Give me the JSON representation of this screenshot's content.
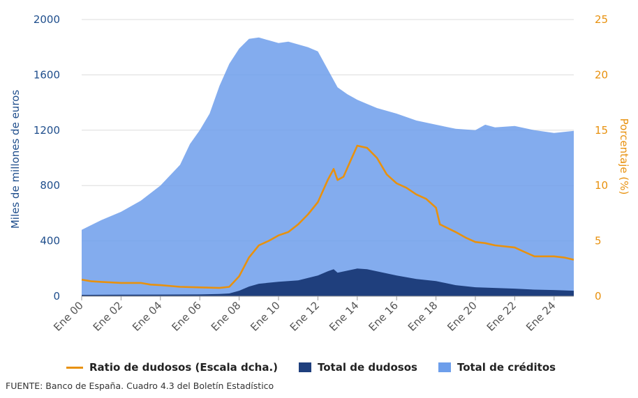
{
  "chart_data": {
    "type": "area",
    "x_start_year": 2000,
    "x_end_year": 2025,
    "xlabel": "",
    "ylabel_left": "Miles de millones de euros",
    "ylabel_right": "Porcentaje (%)",
    "ylim_left": [
      0,
      2000
    ],
    "ylim_right": [
      0,
      25
    ],
    "yticks_left": [
      "0",
      "400",
      "800",
      "1200",
      "1600",
      "2000"
    ],
    "yticks_right": [
      "0",
      "5",
      "10",
      "15",
      "20",
      "25"
    ],
    "xticks": [
      "Ene 00",
      "Ene 02",
      "Ene 04",
      "Ene 06",
      "Ene 08",
      "Ene 10",
      "Ene 12",
      "Ene 14",
      "Ene 16",
      "Ene 18",
      "Ene 20",
      "Ene 22",
      "Ene 24"
    ],
    "grid": true,
    "legend_position": "bottom",
    "series": [
      {
        "name": "Total de créditos",
        "axis": "left",
        "kind": "area",
        "color": "#6d9eeb",
        "points": [
          [
            2000.0,
            480
          ],
          [
            2001.0,
            550
          ],
          [
            2002.0,
            610
          ],
          [
            2003.0,
            690
          ],
          [
            2004.0,
            800
          ],
          [
            2005.0,
            950
          ],
          [
            2005.5,
            1100
          ],
          [
            2006.0,
            1200
          ],
          [
            2006.5,
            1320
          ],
          [
            2007.0,
            1520
          ],
          [
            2007.5,
            1680
          ],
          [
            2008.0,
            1790
          ],
          [
            2008.5,
            1860
          ],
          [
            2009.0,
            1870
          ],
          [
            2009.5,
            1850
          ],
          [
            2010.0,
            1830
          ],
          [
            2010.5,
            1840
          ],
          [
            2011.0,
            1820
          ],
          [
            2011.5,
            1800
          ],
          [
            2012.0,
            1770
          ],
          [
            2012.5,
            1640
          ],
          [
            2013.0,
            1510
          ],
          [
            2013.5,
            1460
          ],
          [
            2014.0,
            1420
          ],
          [
            2014.5,
            1390
          ],
          [
            2015.0,
            1360
          ],
          [
            2016.0,
            1320
          ],
          [
            2017.0,
            1270
          ],
          [
            2018.0,
            1240
          ],
          [
            2019.0,
            1210
          ],
          [
            2020.0,
            1200
          ],
          [
            2020.5,
            1240
          ],
          [
            2021.0,
            1220
          ],
          [
            2022.0,
            1230
          ],
          [
            2023.0,
            1200
          ],
          [
            2024.0,
            1180
          ],
          [
            2025.0,
            1195
          ]
        ]
      },
      {
        "name": "Total de dudosos",
        "axis": "left",
        "kind": "area",
        "color": "#1f3f7d",
        "points": [
          [
            2000.0,
            10
          ],
          [
            2002.0,
            11
          ],
          [
            2004.0,
            12
          ],
          [
            2006.0,
            13
          ],
          [
            2007.0,
            16
          ],
          [
            2007.5,
            20
          ],
          [
            2008.0,
            40
          ],
          [
            2008.5,
            70
          ],
          [
            2009.0,
            90
          ],
          [
            2010.0,
            105
          ],
          [
            2011.0,
            115
          ],
          [
            2012.0,
            150
          ],
          [
            2012.5,
            180
          ],
          [
            2012.8,
            195
          ],
          [
            2013.0,
            170
          ],
          [
            2013.5,
            185
          ],
          [
            2014.0,
            200
          ],
          [
            2014.5,
            195
          ],
          [
            2015.0,
            180
          ],
          [
            2016.0,
            150
          ],
          [
            2017.0,
            125
          ],
          [
            2018.0,
            110
          ],
          [
            2019.0,
            80
          ],
          [
            2020.0,
            65
          ],
          [
            2021.0,
            60
          ],
          [
            2022.0,
            55
          ],
          [
            2023.0,
            48
          ],
          [
            2024.0,
            45
          ],
          [
            2025.0,
            40
          ]
        ]
      },
      {
        "name": "Ratio de dudosos (Escala dcha.)",
        "axis": "right",
        "kind": "line",
        "color": "#e8910e",
        "points": [
          [
            2000.0,
            1.5
          ],
          [
            2000.5,
            1.35
          ],
          [
            2001.0,
            1.3
          ],
          [
            2002.0,
            1.2
          ],
          [
            2003.0,
            1.2
          ],
          [
            2003.5,
            1.05
          ],
          [
            2004.0,
            1.0
          ],
          [
            2005.0,
            0.85
          ],
          [
            2006.0,
            0.8
          ],
          [
            2007.0,
            0.75
          ],
          [
            2007.5,
            0.85
          ],
          [
            2008.0,
            1.8
          ],
          [
            2008.5,
            3.5
          ],
          [
            2009.0,
            4.6
          ],
          [
            2009.5,
            5.0
          ],
          [
            2010.0,
            5.5
          ],
          [
            2010.5,
            5.8
          ],
          [
            2011.0,
            6.5
          ],
          [
            2011.5,
            7.4
          ],
          [
            2012.0,
            8.5
          ],
          [
            2012.5,
            10.5
          ],
          [
            2012.8,
            11.5
          ],
          [
            2013.0,
            10.5
          ],
          [
            2013.3,
            10.8
          ],
          [
            2013.6,
            12.0
          ],
          [
            2014.0,
            13.6
          ],
          [
            2014.5,
            13.4
          ],
          [
            2015.0,
            12.5
          ],
          [
            2015.5,
            11.0
          ],
          [
            2016.0,
            10.2
          ],
          [
            2016.5,
            9.8
          ],
          [
            2017.0,
            9.2
          ],
          [
            2017.5,
            8.8
          ],
          [
            2018.0,
            8.0
          ],
          [
            2018.2,
            6.5
          ],
          [
            2019.0,
            5.8
          ],
          [
            2019.5,
            5.3
          ],
          [
            2020.0,
            4.9
          ],
          [
            2020.5,
            4.8
          ],
          [
            2021.0,
            4.6
          ],
          [
            2022.0,
            4.4
          ],
          [
            2022.5,
            4.0
          ],
          [
            2023.0,
            3.6
          ],
          [
            2024.0,
            3.6
          ],
          [
            2024.5,
            3.5
          ],
          [
            2025.0,
            3.3
          ]
        ]
      }
    ],
    "legend": [
      {
        "label": "Ratio de dudosos (Escala dcha.)",
        "type": "line",
        "color": "#e8910e"
      },
      {
        "label": "Total de dudosos",
        "type": "box",
        "color": "#1f3f7d"
      },
      {
        "label": "Total de créditos",
        "type": "box",
        "color": "#6d9eeb"
      }
    ]
  },
  "source": "FUENTE: Banco de España. Cuadro 4.3 del Boletín Estadístico"
}
